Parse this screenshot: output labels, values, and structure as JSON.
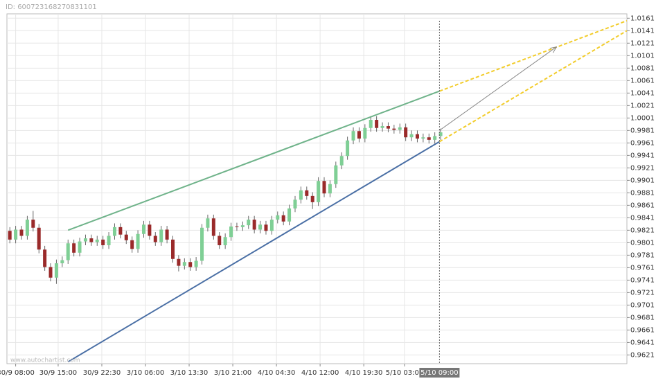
{
  "header": {
    "id_text": "ID: 600723168270831101"
  },
  "watermark": "www.autochartist.com",
  "chart_data": {
    "type": "candlestick",
    "up_color": "#7fcf95",
    "down_color": "#9a2a2a",
    "grid": true,
    "x": [
      0,
      1,
      2,
      3,
      4,
      5,
      6,
      7,
      8,
      9,
      10,
      11,
      12,
      13,
      14,
      15,
      16,
      17,
      18,
      19,
      20,
      21,
      22,
      23,
      24,
      25,
      26,
      27,
      28,
      29,
      30,
      31,
      32,
      33,
      34,
      35,
      36,
      37,
      38,
      39,
      40,
      41,
      42,
      43,
      44,
      45,
      46,
      47,
      48,
      49,
      50,
      51,
      52,
      53,
      54,
      55,
      56,
      57,
      58,
      59,
      60,
      61,
      62,
      63,
      64,
      65,
      66,
      67,
      68,
      69,
      70,
      71,
      72,
      73,
      74
    ],
    "open": [
      0.982,
      0.9806,
      0.9822,
      0.9812,
      0.9838,
      0.9825,
      0.979,
      0.9762,
      0.9745,
      0.9768,
      0.9773,
      0.98,
      0.9785,
      0.9803,
      0.9808,
      0.9802,
      0.9806,
      0.9797,
      0.9812,
      0.9826,
      0.9814,
      0.9805,
      0.9791,
      0.9815,
      0.983,
      0.9812,
      0.9802,
      0.9822,
      0.9806,
      0.9775,
      0.9764,
      0.977,
      0.9762,
      0.9772,
      0.9825,
      0.984,
      0.9812,
      0.9797,
      0.981,
      0.9827,
      0.9826,
      0.9829,
      0.9838,
      0.9822,
      0.983,
      0.982,
      0.9838,
      0.9845,
      0.9835,
      0.9856,
      0.987,
      0.9885,
      0.9876,
      0.9866,
      0.99,
      0.988,
      0.9895,
      0.9925,
      0.994,
      0.9965,
      0.998,
      0.9968,
      0.9985,
      0.9998,
      0.9985,
      0.9988,
      0.9984,
      0.9982,
      0.9986,
      0.997,
      0.9975,
      0.9968,
      0.997,
      0.9966,
      0.9972
    ],
    "high": [
      0.9826,
      0.9828,
      0.9828,
      0.9844,
      0.9852,
      0.9831,
      0.9796,
      0.9768,
      0.9774,
      0.9779,
      0.9806,
      0.9806,
      0.9809,
      0.9814,
      0.9814,
      0.9812,
      0.9812,
      0.9818,
      0.9832,
      0.9832,
      0.982,
      0.9811,
      0.9821,
      0.9836,
      0.9836,
      0.9818,
      0.9828,
      0.9828,
      0.9812,
      0.9781,
      0.9776,
      0.9776,
      0.9778,
      0.9831,
      0.9846,
      0.9846,
      0.9818,
      0.9816,
      0.9833,
      0.9833,
      0.9835,
      0.9844,
      0.9844,
      0.9836,
      0.9836,
      0.9844,
      0.9851,
      0.9851,
      0.9862,
      0.9876,
      0.9891,
      0.9891,
      0.9882,
      0.9906,
      0.9906,
      0.9901,
      0.9931,
      0.9946,
      0.9971,
      0.9986,
      0.9986,
      0.9991,
      1.0004,
      1.0004,
      0.9994,
      0.9994,
      0.999,
      0.9992,
      0.9992,
      0.9981,
      0.9981,
      0.9976,
      0.9976,
      0.9978,
      0.9984
    ],
    "low": [
      0.98,
      0.98,
      0.9806,
      0.9806,
      0.9819,
      0.9784,
      0.9756,
      0.9739,
      0.9735,
      0.9762,
      0.9767,
      0.9779,
      0.9779,
      0.9797,
      0.9796,
      0.9796,
      0.9791,
      0.9791,
      0.9806,
      0.9808,
      0.9799,
      0.9785,
      0.9785,
      0.9809,
      0.9806,
      0.9796,
      0.9796,
      0.98,
      0.9769,
      0.9755,
      0.9758,
      0.9756,
      0.9756,
      0.9766,
      0.9819,
      0.9806,
      0.9791,
      0.9791,
      0.9804,
      0.982,
      0.982,
      0.9823,
      0.9816,
      0.9816,
      0.9814,
      0.9814,
      0.9832,
      0.9829,
      0.9829,
      0.985,
      0.9864,
      0.987,
      0.9855,
      0.986,
      0.9874,
      0.9874,
      0.9889,
      0.9919,
      0.9934,
      0.9959,
      0.9962,
      0.9962,
      0.9979,
      0.9979,
      0.9979,
      0.9978,
      0.9976,
      0.9976,
      0.9964,
      0.9964,
      0.9962,
      0.9962,
      0.996,
      0.996,
      0.9966
    ],
    "close": [
      0.9806,
      0.9822,
      0.9812,
      0.9838,
      0.9825,
      0.979,
      0.9762,
      0.9745,
      0.9768,
      0.9773,
      0.98,
      0.9785,
      0.9803,
      0.9808,
      0.9802,
      0.9806,
      0.9797,
      0.9812,
      0.9826,
      0.9814,
      0.9805,
      0.9791,
      0.9815,
      0.983,
      0.9812,
      0.9802,
      0.9822,
      0.9806,
      0.9775,
      0.9764,
      0.977,
      0.9762,
      0.9772,
      0.9825,
      0.984,
      0.9812,
      0.9797,
      0.981,
      0.9827,
      0.9826,
      0.9829,
      0.9838,
      0.9822,
      0.983,
      0.982,
      0.9838,
      0.9845,
      0.9835,
      0.9856,
      0.987,
      0.9885,
      0.9876,
      0.9866,
      0.99,
      0.988,
      0.9895,
      0.9925,
      0.994,
      0.9965,
      0.998,
      0.9968,
      0.9985,
      0.9998,
      0.9985,
      0.9988,
      0.9984,
      0.9982,
      0.9986,
      0.997,
      0.9975,
      0.9968,
      0.997,
      0.9966,
      0.9972,
      0.9978
    ],
    "xlim": [
      -0.5,
      106
    ],
    "ylim": [
      0.9607,
      1.0168
    ],
    "xticks": [
      {
        "value": 1,
        "label": "30/9 08:00"
      },
      {
        "value": 8.3,
        "label": "30/9 15:00"
      },
      {
        "value": 15.8,
        "label": "30/9 22:30"
      },
      {
        "value": 23.3,
        "label": "3/10 06:00"
      },
      {
        "value": 30.8,
        "label": "3/10 13:30"
      },
      {
        "value": 38.3,
        "label": "3/10 21:00"
      },
      {
        "value": 45.8,
        "label": "4/10 04:30"
      },
      {
        "value": 53.3,
        "label": "4/10 12:00"
      },
      {
        "value": 60.8,
        "label": "4/10 19:30"
      },
      {
        "value": 67.8,
        "label": "5/10 03:00"
      }
    ],
    "yticks": [
      1.0161,
      1.0141,
      1.0121,
      1.0101,
      1.0081,
      1.0061,
      1.0041,
      1.0021,
      1.0001,
      0.9981,
      0.9961,
      0.9941,
      0.9921,
      0.9901,
      0.9881,
      0.9861,
      0.9841,
      0.9821,
      0.9801,
      0.9781,
      0.9761,
      0.9741,
      0.9721,
      0.9701,
      0.9681,
      0.9661,
      0.9641,
      0.9621
    ],
    "current_time": {
      "value": 73.8,
      "label": "5/10 09:00"
    },
    "trend_lines": [
      {
        "color": "#6fb38a",
        "dash": false,
        "arrow": false,
        "x": [
          10,
          73.8
        ],
        "y": [
          0.9821,
          1.0044
        ]
      },
      {
        "color": "#4a6fa5",
        "dash": false,
        "arrow": false,
        "x": [
          10,
          73.8
        ],
        "y": [
          0.961,
          0.9963
        ]
      },
      {
        "color": "#f2cc2a",
        "dash": true,
        "arrow": false,
        "x": [
          73.8,
          106
        ],
        "y": [
          1.0044,
          1.0157
        ]
      },
      {
        "color": "#f2cc2a",
        "dash": true,
        "arrow": false,
        "x": [
          73.8,
          106
        ],
        "y": [
          0.9963,
          1.0141
        ]
      },
      {
        "color": "#888888",
        "dash": false,
        "arrow": true,
        "x": [
          73.8,
          93.9
        ],
        "y": [
          0.9981,
          1.0115
        ]
      }
    ]
  }
}
